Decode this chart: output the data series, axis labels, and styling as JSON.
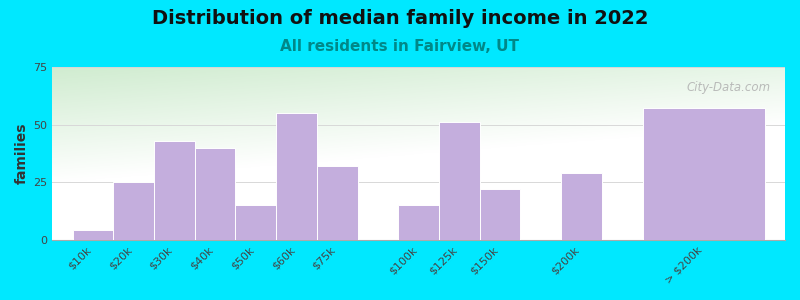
{
  "title": "Distribution of median family income in 2022",
  "subtitle": "All residents in Fairview, UT",
  "ylabel": "families",
  "categories": [
    "$10k",
    "$20k",
    "$30k",
    "$40k",
    "$50k",
    "$60k",
    "$75k",
    "$100k",
    "$125k",
    "$150k",
    "$200k",
    "> $200k"
  ],
  "values": [
    4,
    25,
    43,
    40,
    15,
    55,
    32,
    15,
    51,
    22,
    29,
    57
  ],
  "bar_widths": [
    1,
    1,
    1,
    1,
    1,
    1,
    1,
    1,
    1,
    1,
    1,
    3
  ],
  "bar_lefts": [
    0,
    1,
    2,
    3,
    4,
    5,
    6,
    8,
    9,
    10,
    12,
    14
  ],
  "bar_color": "#c4aedd",
  "bar_edge_color": "#ffffff",
  "background_outer": "#00e8ff",
  "background_plot_topleft": "#d0ecd0",
  "background_plot_white": "#f8f8ff",
  "grid_color": "#d8d8d8",
  "title_fontsize": 14,
  "subtitle_fontsize": 11,
  "subtitle_color": "#008888",
  "ylabel_fontsize": 10,
  "tick_fontsize": 8,
  "ylim": [
    0,
    75
  ],
  "yticks": [
    0,
    25,
    50,
    75
  ],
  "xlim": [
    -0.5,
    17.5
  ],
  "tick_positions": [
    0.5,
    1.5,
    2.5,
    3.5,
    4.5,
    5.5,
    6.5,
    8.5,
    9.5,
    10.5,
    12.5,
    15.5
  ],
  "watermark_text": "City-Data.com"
}
